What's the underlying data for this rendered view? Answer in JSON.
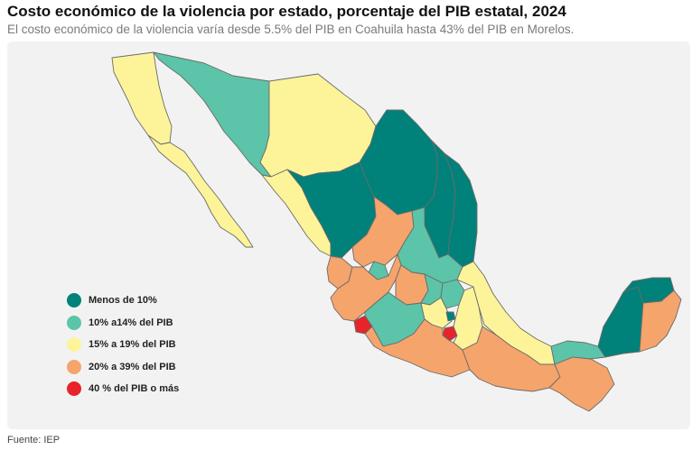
{
  "title": "Costo económico de la violencia por estado, porcentaje del PIB estatal, 2024",
  "subtitle": "El costo económico de la violencia varía desde 5.5% del PIB en Coahuila hasta 43% del PIB en Morelos.",
  "source": "Fuente: IEP",
  "colors": {
    "panel_bg": "#f2f2f2",
    "border": "#6b6b6b",
    "menos_10": "#00817a",
    "10_14": "#5cc4a8",
    "15_19": "#fdf49a",
    "20_39": "#f5a46b",
    "40_mas": "#e8232a"
  },
  "legend": [
    {
      "label": "Menos de 10%",
      "color": "#00817a"
    },
    {
      "label": "10% a14% del PIB",
      "color": "#5cc4a8"
    },
    {
      "label": "15% a 19% del PIB",
      "color": "#fdf49a"
    },
    {
      "label": "20% a 39% del PIB",
      "color": "#f5a46b"
    },
    {
      "label": "40 % del PIB o más",
      "color": "#e8232a"
    }
  ]
}
